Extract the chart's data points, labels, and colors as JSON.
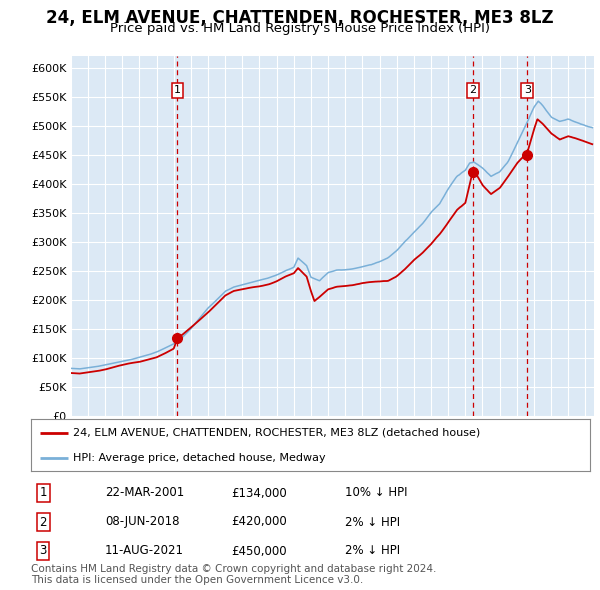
{
  "title": "24, ELM AVENUE, CHATTENDEN, ROCHESTER, ME3 8LZ",
  "subtitle": "Price paid vs. HM Land Registry's House Price Index (HPI)",
  "title_fontsize": 12,
  "subtitle_fontsize": 9.5,
  "ylim": [
    0,
    620000
  ],
  "xlim_start": 1995.0,
  "xlim_end": 2025.5,
  "yticks": [
    0,
    50000,
    100000,
    150000,
    200000,
    250000,
    300000,
    350000,
    400000,
    450000,
    500000,
    550000,
    600000
  ],
  "ytick_labels": [
    "£0",
    "£50K",
    "£100K",
    "£150K",
    "£200K",
    "£250K",
    "£300K",
    "£350K",
    "£400K",
    "£450K",
    "£500K",
    "£550K",
    "£600K"
  ],
  "plot_bg_color": "#dce9f5",
  "fig_bg_color": "#ffffff",
  "hpi_color": "#7ab0d8",
  "price_color": "#cc0000",
  "marker_color": "#cc0000",
  "vline_color": "#cc0000",
  "grid_color": "#ffffff",
  "sale_dates": [
    2001.22,
    2018.44,
    2021.61
  ],
  "sale_prices": [
    134000,
    420000,
    450000
  ],
  "sale_labels": [
    "1",
    "2",
    "3"
  ],
  "legend_price_label": "24, ELM AVENUE, CHATTENDEN, ROCHESTER, ME3 8LZ (detached house)",
  "legend_hpi_label": "HPI: Average price, detached house, Medway",
  "table_rows": [
    [
      "1",
      "22-MAR-2001",
      "£134,000",
      "10% ↓ HPI"
    ],
    [
      "2",
      "08-JUN-2018",
      "£420,000",
      "2% ↓ HPI"
    ],
    [
      "3",
      "11-AUG-2021",
      "£450,000",
      "2% ↓ HPI"
    ]
  ],
  "footnote": "Contains HM Land Registry data © Crown copyright and database right 2024.\nThis data is licensed under the Open Government Licence v3.0.",
  "footnote_fontsize": 7.5
}
